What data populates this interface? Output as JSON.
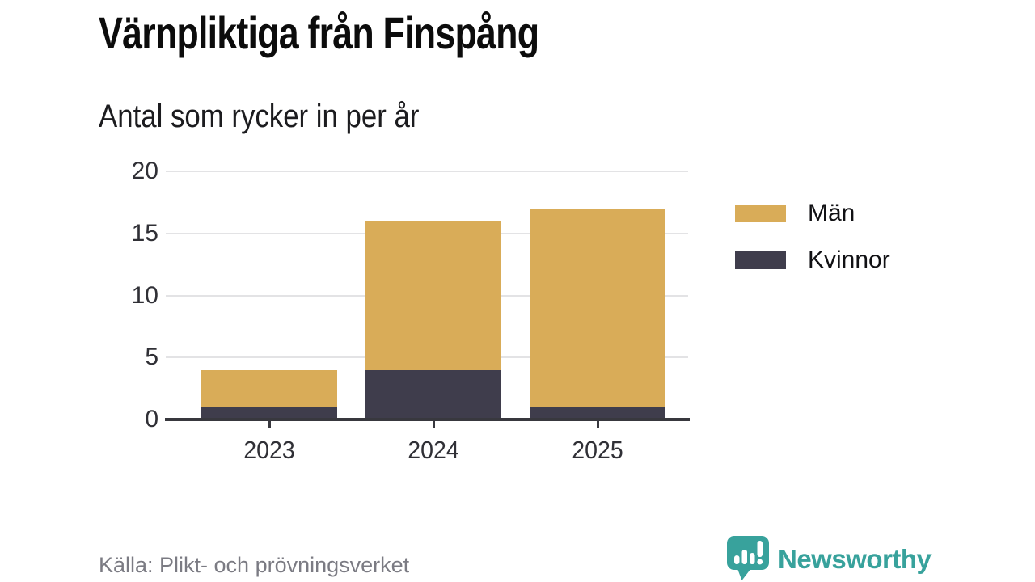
{
  "colors": {
    "men": "#d9ac58",
    "women": "#3f3d4c",
    "grid": "#e3e3e5",
    "axis": "#38383e",
    "tick_text": "#303036",
    "muted_text": "#7b7b83",
    "brand_teal": "#38a29c",
    "background": "#ffffff"
  },
  "chart_data": {
    "type": "bar",
    "stacked": true,
    "title": "Värnpliktiga från Finspång",
    "subtitle": "Antal som rycker in per år",
    "categories": [
      "2023",
      "2024",
      "2025"
    ],
    "series": [
      {
        "name": "Män",
        "color": "#d9ac58",
        "values": [
          3,
          12,
          16
        ]
      },
      {
        "name": "Kvinnor",
        "color": "#3f3d4c",
        "values": [
          1,
          4,
          1
        ]
      }
    ],
    "stack_order_bottom_to_top": [
      "Kvinnor",
      "Män"
    ],
    "ylim": [
      0,
      20
    ],
    "yticks": [
      0,
      5,
      10,
      15,
      20
    ],
    "grid": true,
    "legend_position": "right",
    "source": "Källa: Plikt- och prövningsverket"
  },
  "brand": {
    "name": "Newsworthy",
    "icon": "speech-bubble-bar-chart-icon"
  }
}
